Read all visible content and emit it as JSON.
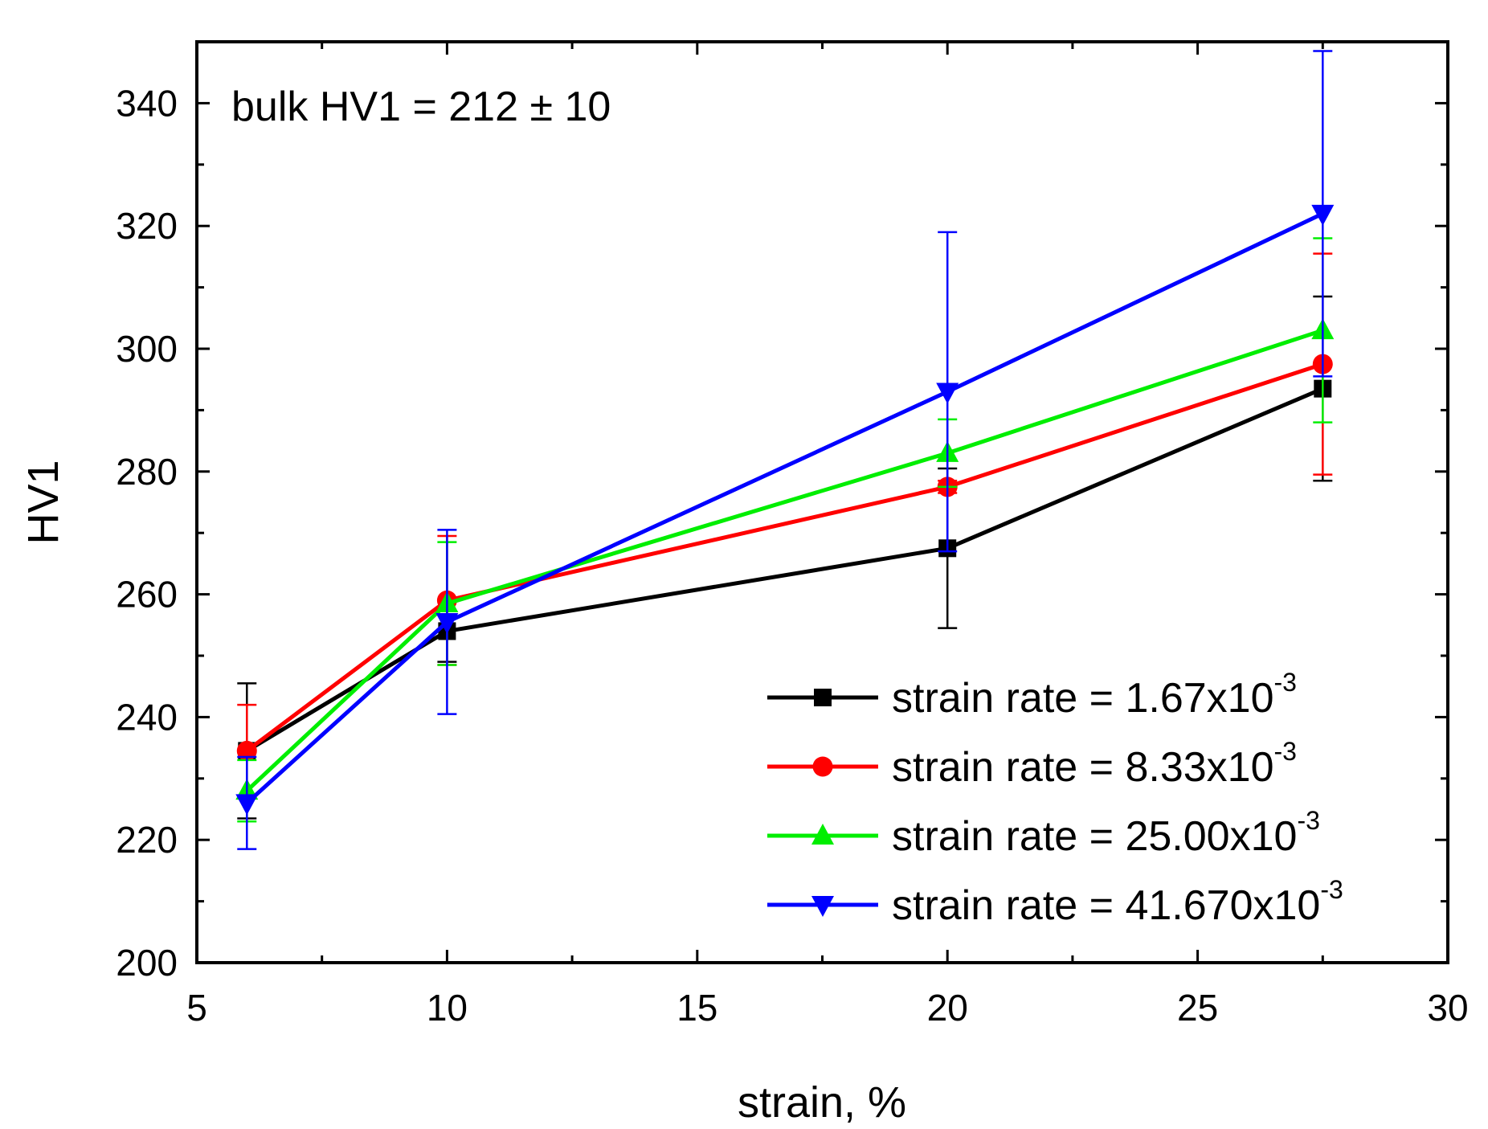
{
  "chart_data": {
    "type": "line",
    "title": "",
    "xlabel": "strain, %",
    "ylabel": "HV1",
    "xlim": [
      5,
      30
    ],
    "ylim": [
      200,
      350
    ],
    "x_ticks": [
      5,
      10,
      15,
      20,
      25,
      30
    ],
    "y_ticks": [
      200,
      220,
      240,
      260,
      280,
      300,
      320,
      340
    ],
    "x_tick_labels": [
      "5",
      "10",
      "15",
      "20",
      "25",
      "30"
    ],
    "y_tick_labels": [
      "200",
      "220",
      "240",
      "260",
      "280",
      "300",
      "320",
      "340"
    ],
    "grid": false,
    "annotation": "bulk HV1 = 212 ± 10",
    "legend_position": "bottom-right",
    "x": [
      6,
      10,
      20,
      27.5
    ],
    "series": [
      {
        "name": "strain rate = 1.67x10-3",
        "label_main": "strain rate = 1.67x10",
        "label_sup": "-3",
        "color": "#000000",
        "marker": "square",
        "values": [
          234.5,
          254,
          267.5,
          293.5
        ],
        "errors": [
          11,
          5,
          13,
          15
        ]
      },
      {
        "name": "strain rate = 8.33x10-3",
        "label_main": "strain rate = 8.33x10",
        "label_sup": "-3",
        "color": "#ff0000",
        "marker": "circle",
        "values": [
          234.5,
          259,
          277.5,
          297.5
        ],
        "errors": [
          7.5,
          10.5,
          1,
          18
        ]
      },
      {
        "name": "strain rate = 25.00x10-3",
        "label_main": "strain rate = 25.00x10",
        "label_sup": "-3",
        "color": "#00ee00",
        "marker": "triangle-up",
        "values": [
          228,
          258.5,
          283,
          303
        ],
        "errors": [
          5,
          10,
          5.5,
          15
        ]
      },
      {
        "name": "strain rate = 41.670x10-3",
        "label_main": "strain rate = 41.670x10",
        "label_sup": "-3",
        "color": "#0000ff",
        "marker": "triangle-down",
        "values": [
          226,
          255.5,
          293,
          322
        ],
        "errors": [
          7.5,
          15,
          26,
          26.5
        ]
      }
    ]
  }
}
